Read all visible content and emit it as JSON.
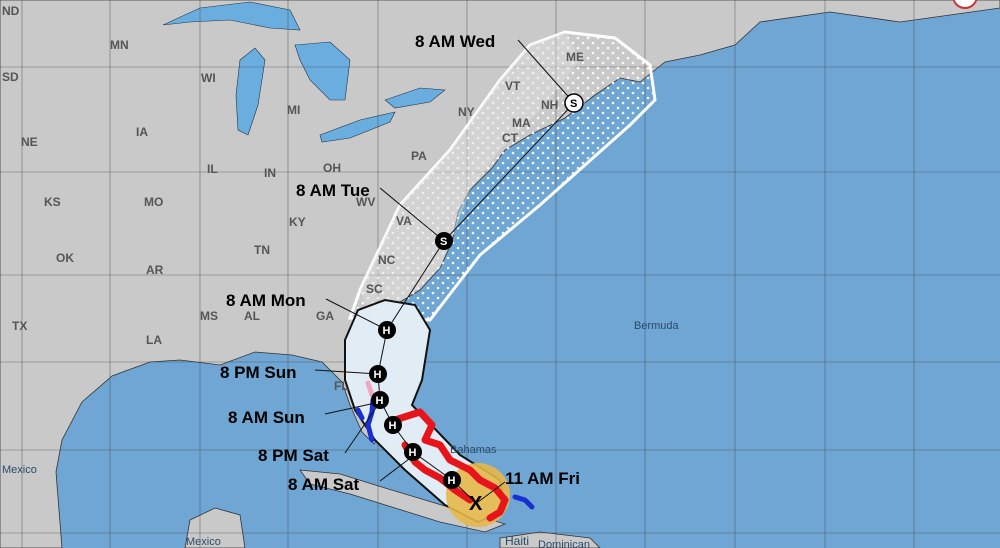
{
  "map": {
    "state_labels": [
      "ND",
      "SD",
      "MN",
      "WI",
      "MI",
      "IA",
      "NE",
      "IL",
      "IN",
      "OH",
      "PA",
      "NY",
      "KS",
      "MO",
      "KY",
      "WV",
      "VA",
      "TN",
      "NC",
      "OK",
      "AR",
      "SC",
      "MS",
      "AL",
      "GA",
      "LA",
      "TX",
      "FL",
      "ME",
      "VT",
      "NH",
      "MA",
      "CT"
    ],
    "place_labels": {
      "bermuda": "Bermuda",
      "mexico_west": "Mexico",
      "mexico_south": "Mexico",
      "bahamas": "Bahamas",
      "haiti": "Haiti",
      "dominican": "Dominican"
    },
    "colors": {
      "ocean": "#6fa6d4",
      "land": "#c9c9c9",
      "lakes": "#6aaee0",
      "hurricane_warning": "#e8141c",
      "tropical_storm_warning": "#1a2fd1",
      "hurricane_watch": "#f2a6c0",
      "tropical_storm_watch": "#e6b84a",
      "cone_day1_3": "#e2ecf4"
    },
    "track": [
      {
        "time": "11 AM Fri",
        "marker": "X"
      },
      {
        "time": "",
        "marker": "H"
      },
      {
        "time": "8 AM Sat",
        "marker": "H"
      },
      {
        "time": "8 PM Sat",
        "marker": "H"
      },
      {
        "time": "8 AM Sun",
        "marker": "H"
      },
      {
        "time": "8 PM Sun",
        "marker": "H"
      },
      {
        "time": "8 AM Mon",
        "marker": "H"
      },
      {
        "time": "8 AM Tue",
        "marker": "S"
      },
      {
        "time": "8 AM Wed",
        "marker": "S"
      }
    ]
  }
}
